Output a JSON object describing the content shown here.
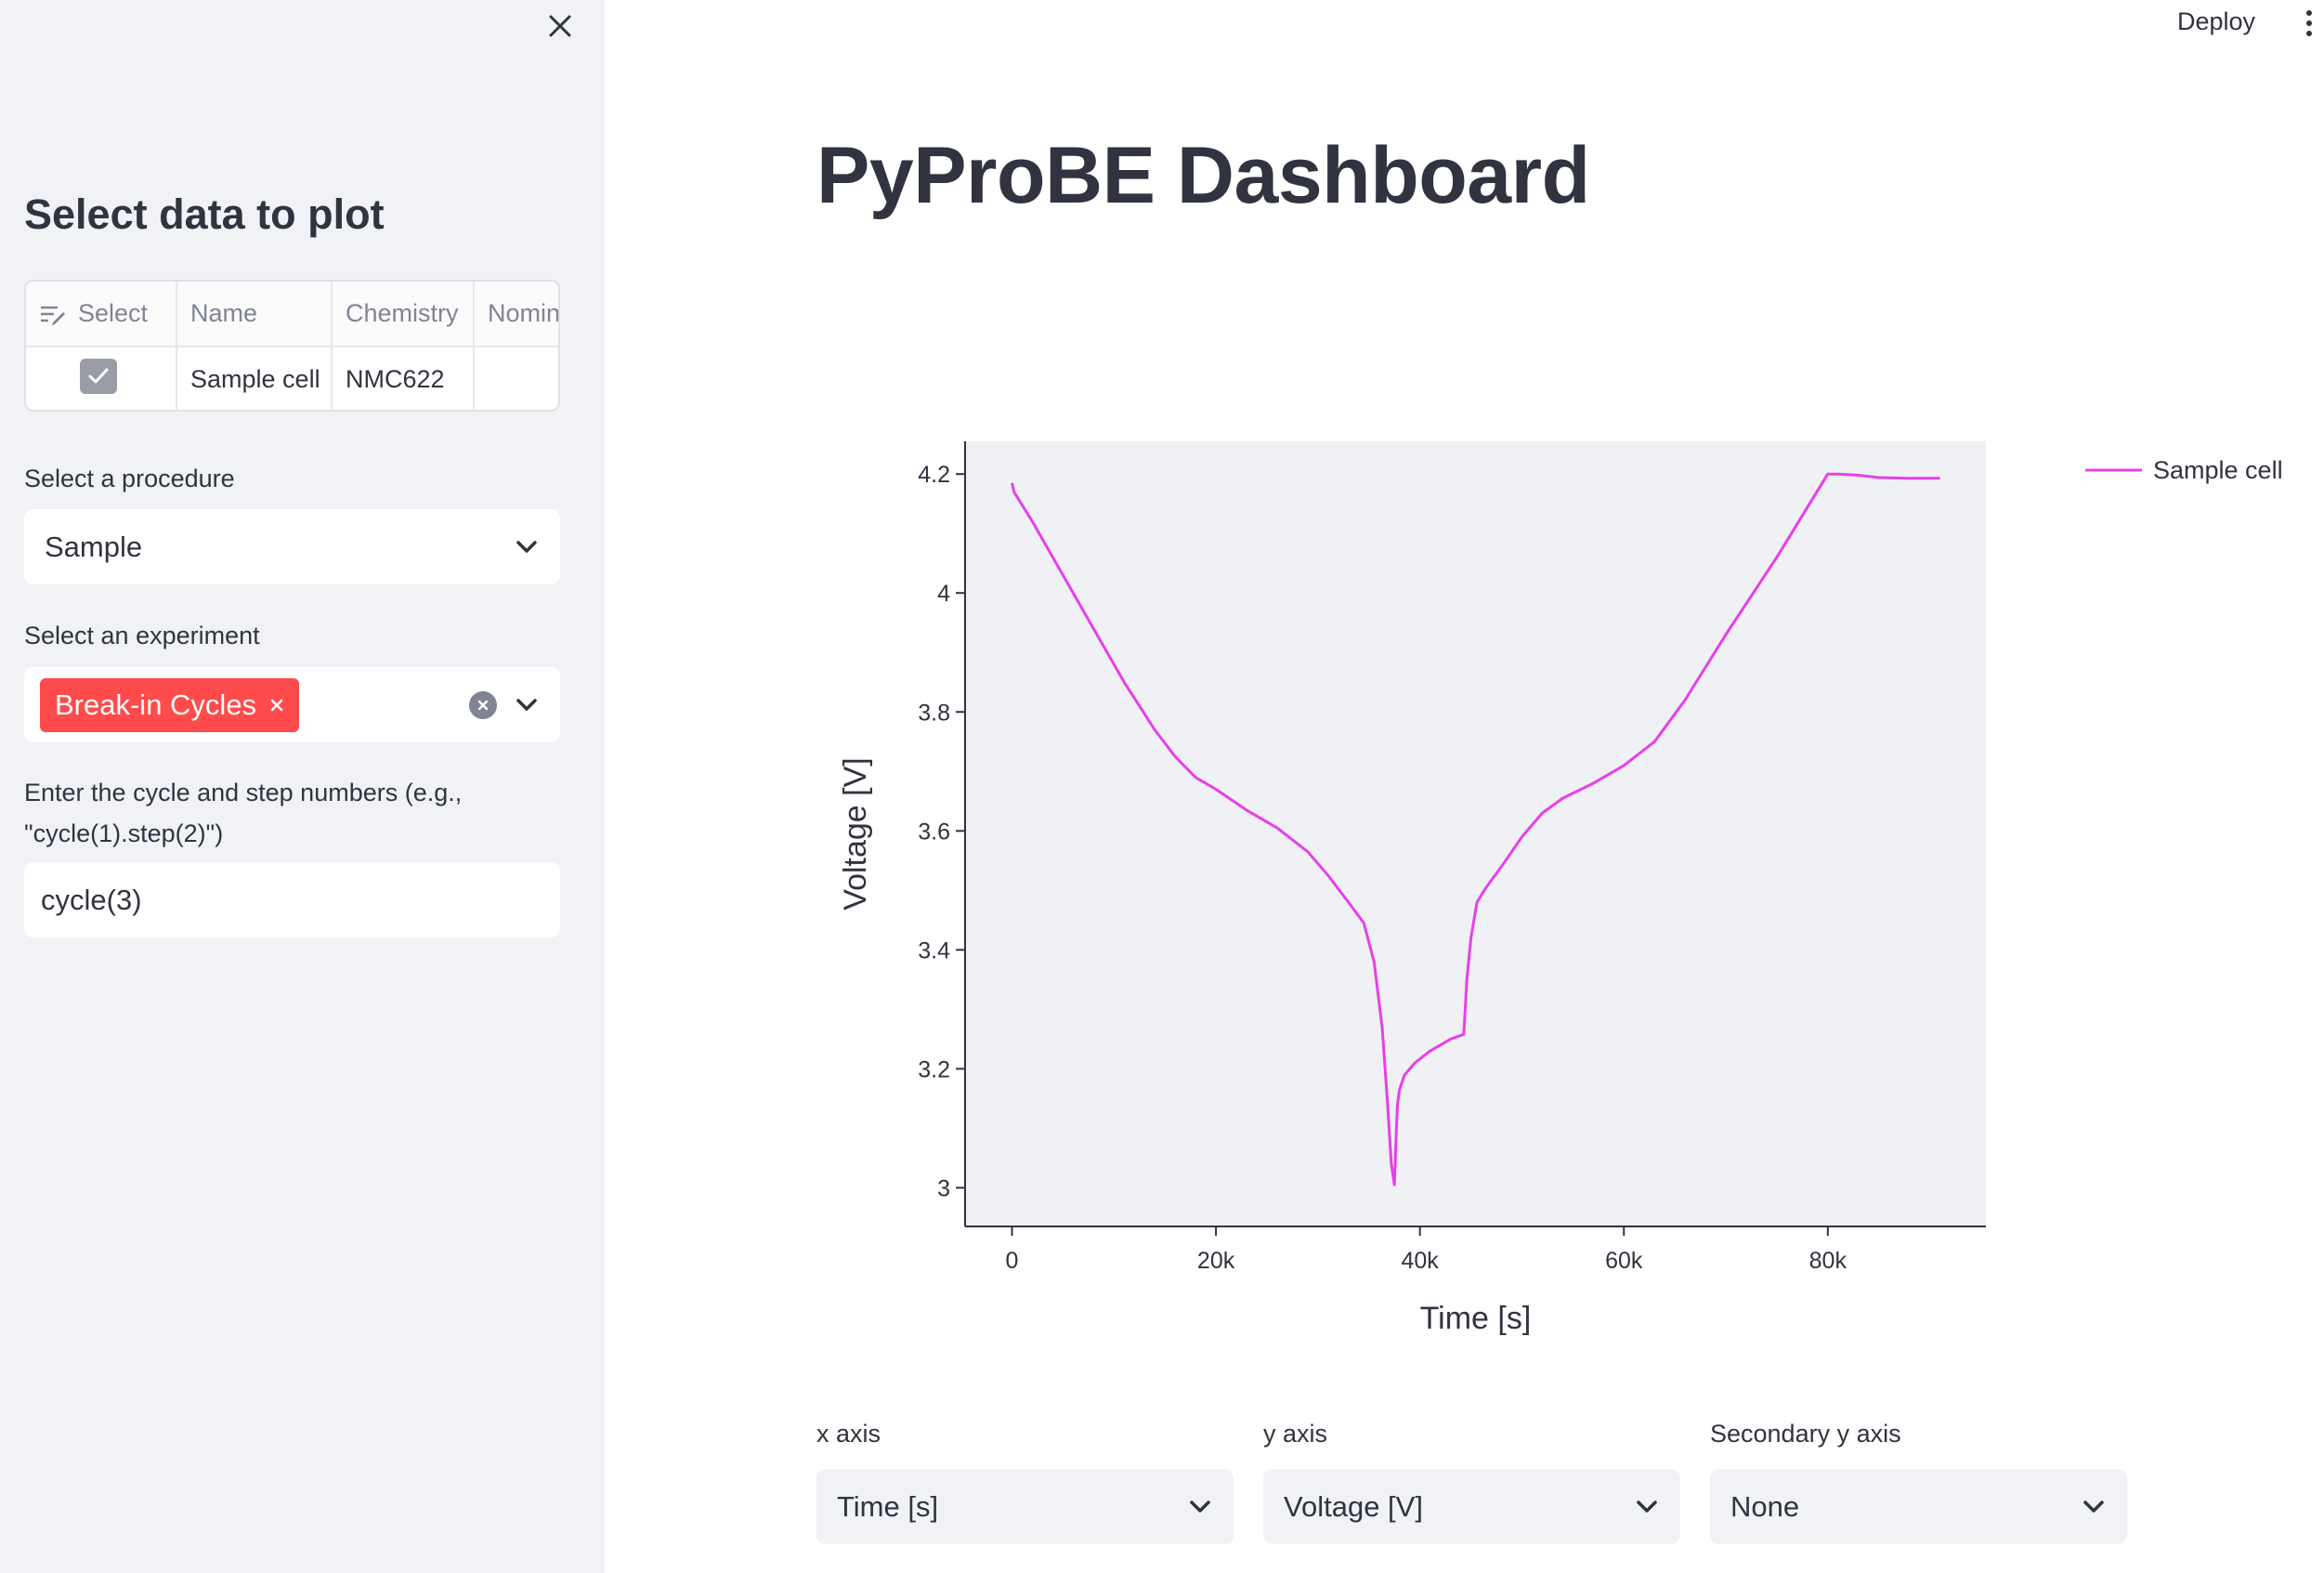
{
  "sidebar": {
    "title": "Select data to plot",
    "table": {
      "columns": [
        "Select",
        "Name",
        "Chemistry",
        "Nomin"
      ],
      "rows": [
        {
          "selected": true,
          "name": "Sample cell",
          "chemistry": "NMC622",
          "nominal": ""
        }
      ]
    },
    "procedure": {
      "label": "Select a procedure",
      "value": "Sample"
    },
    "experiment": {
      "label": "Select an experiment",
      "tags": [
        "Break-in Cycles"
      ]
    },
    "cycle_step": {
      "label_line1": "Enter the cycle and step numbers (e.g.,",
      "label_line2": "\"cycle(1).step(2)\")",
      "value": "cycle(3)"
    }
  },
  "header": {
    "deploy_label": "Deploy"
  },
  "main": {
    "title": "PyProBE Dashboard",
    "controls": {
      "x_axis": {
        "label": "x axis",
        "value": "Time [s]"
      },
      "y_axis": {
        "label": "y axis",
        "value": "Voltage [V]"
      },
      "secondary_y_axis": {
        "label": "Secondary y axis",
        "value": "None"
      }
    }
  },
  "colors": {
    "accent": "#ff4b4b",
    "sidebar_bg": "#f0f2f6",
    "plot_bg": "#f0f1f5",
    "series": "#e83fe8"
  },
  "chart_data": {
    "type": "line",
    "title": "",
    "xlabel": "Time [s]",
    "ylabel": "Voltage [V]",
    "xlim": [
      -4600,
      95500
    ],
    "ylim": [
      2.935,
      4.255
    ],
    "x_ticks": [
      0,
      20000,
      40000,
      60000,
      80000
    ],
    "x_tick_labels": [
      "0",
      "20k",
      "40k",
      "60k",
      "80k"
    ],
    "y_ticks": [
      3,
      3.2,
      3.4,
      3.6,
      3.8,
      4,
      4.2
    ],
    "y_tick_labels": [
      "3",
      "3.2",
      "3.4",
      "3.6",
      "3.8",
      "4",
      "4.2"
    ],
    "legend": "right",
    "grid": false,
    "series": [
      {
        "name": "Sample cell",
        "x": [
          0,
          200,
          2000,
          5000,
          8000,
          11000,
          14000,
          16000,
          18000,
          20000,
          23000,
          26000,
          29000,
          31000,
          33000,
          34500,
          35500,
          36300,
          36800,
          37200,
          37500,
          37700,
          37800,
          38000,
          38500,
          39500,
          41000,
          43000,
          44300,
          44600,
          45000,
          45600,
          46500,
          48000,
          50000,
          52000,
          54000,
          57000,
          60000,
          63000,
          66000,
          70000,
          75000,
          80000,
          81000,
          83000,
          85000,
          88000,
          91000
        ],
        "y": [
          4.185,
          4.17,
          4.12,
          4.03,
          3.94,
          3.85,
          3.77,
          3.725,
          3.69,
          3.67,
          3.635,
          3.605,
          3.565,
          3.525,
          3.48,
          3.445,
          3.38,
          3.27,
          3.15,
          3.04,
          3.005,
          3.1,
          3.14,
          3.165,
          3.19,
          3.21,
          3.23,
          3.25,
          3.258,
          3.35,
          3.42,
          3.48,
          3.505,
          3.54,
          3.59,
          3.63,
          3.655,
          3.68,
          3.71,
          3.75,
          3.82,
          3.93,
          4.06,
          4.2,
          4.2,
          4.198,
          4.194,
          4.193,
          4.193
        ]
      }
    ]
  }
}
